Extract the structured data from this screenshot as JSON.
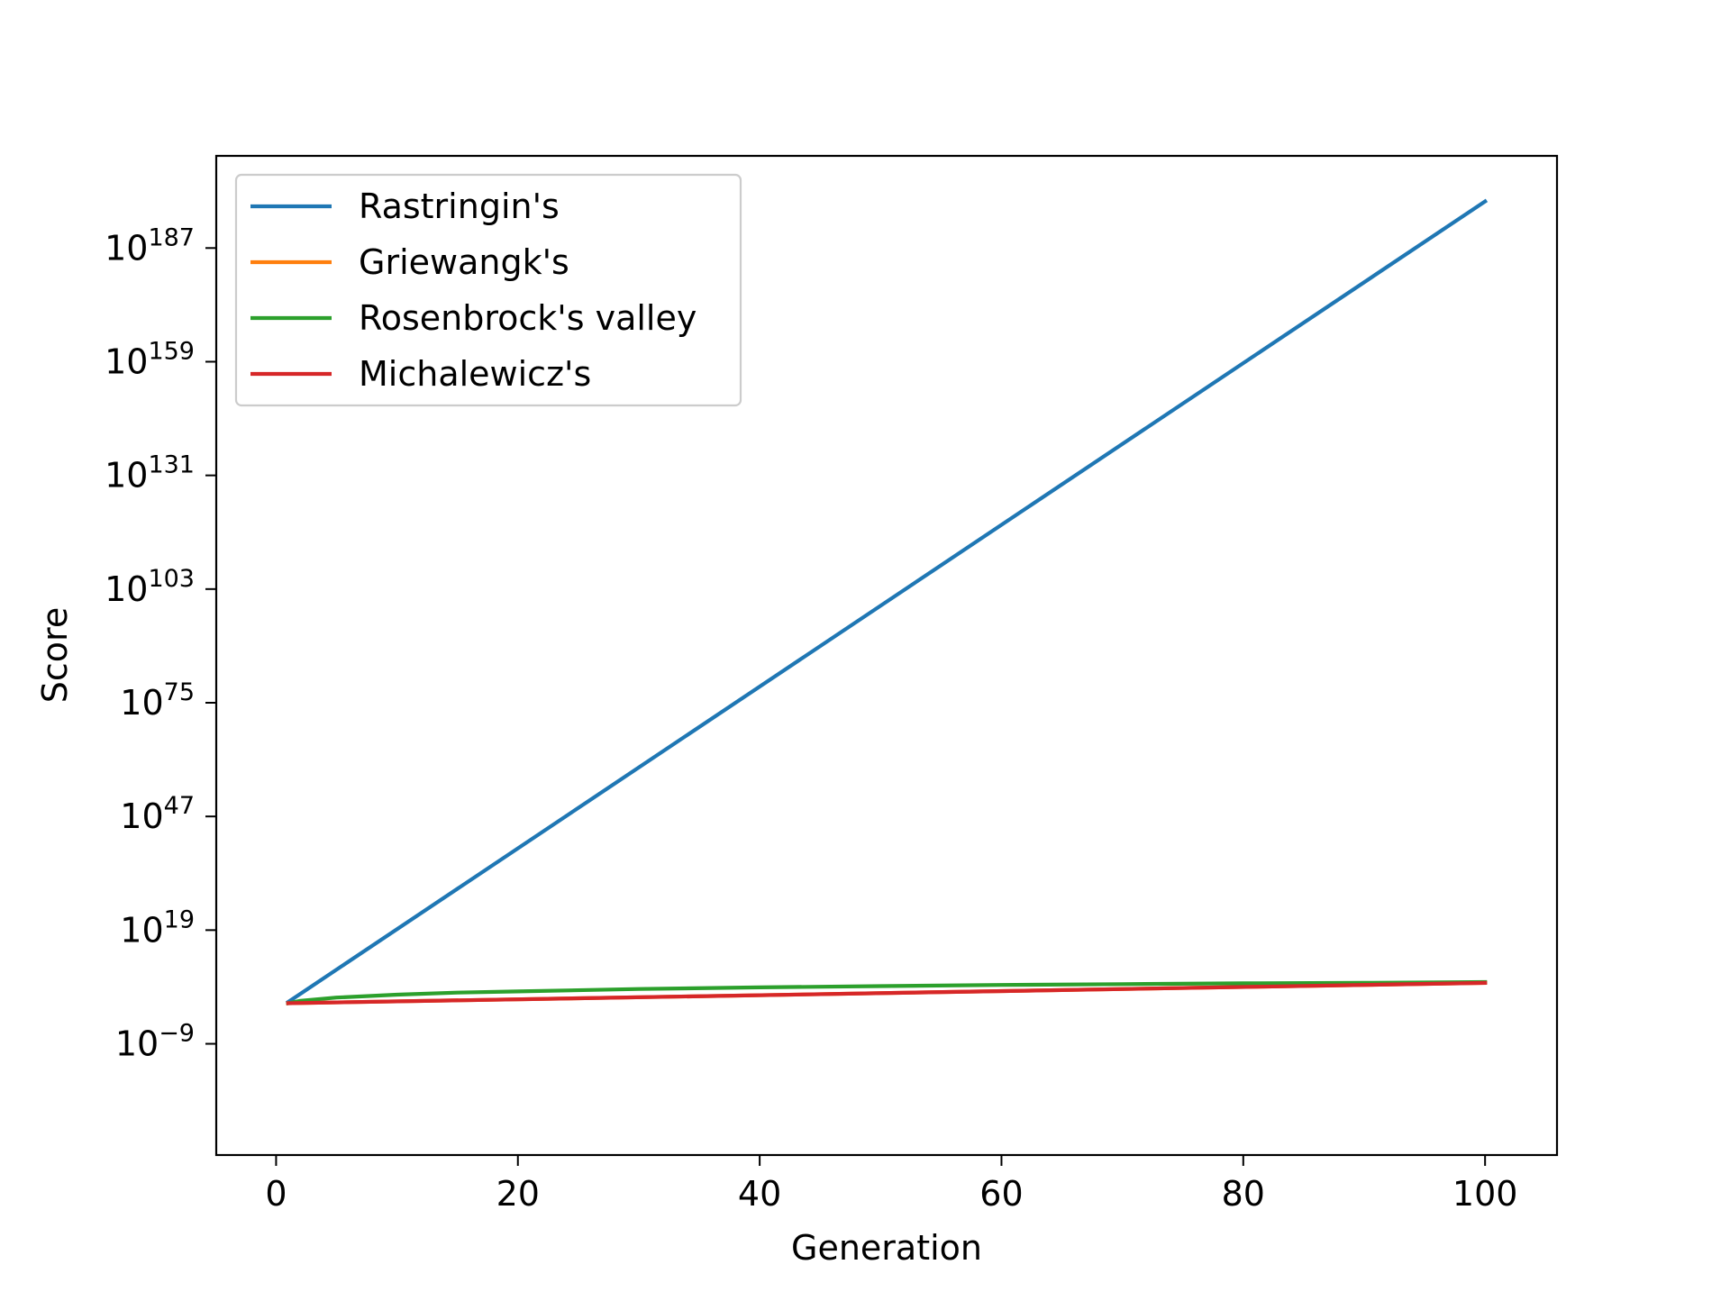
{
  "chart_data": {
    "type": "line",
    "title": "",
    "xlabel": "Generation",
    "ylabel": "Score",
    "xscale": "linear",
    "yscale": "log",
    "xlim": [
      -4.95,
      105.95
    ],
    "ylim_exponent": [
      -36.4,
      209.7
    ],
    "x_ticks": [
      {
        "value": 0,
        "label": "0"
      },
      {
        "value": 20,
        "label": "20"
      },
      {
        "value": 40,
        "label": "40"
      },
      {
        "value": 60,
        "label": "60"
      },
      {
        "value": 80,
        "label": "80"
      },
      {
        "value": 100,
        "label": "100"
      }
    ],
    "y_ticks": [
      {
        "exponent": -9,
        "base": "10",
        "power": "−9"
      },
      {
        "exponent": 19,
        "base": "10",
        "power": "19"
      },
      {
        "exponent": 47,
        "base": "10",
        "power": "47"
      },
      {
        "exponent": 75,
        "base": "10",
        "power": "75"
      },
      {
        "exponent": 103,
        "base": "10",
        "power": "103"
      },
      {
        "exponent": 131,
        "base": "10",
        "power": "131"
      },
      {
        "exponent": 159,
        "base": "10",
        "power": "159"
      },
      {
        "exponent": 187,
        "base": "10",
        "power": "187"
      }
    ],
    "grid": false,
    "legend_position": "top-left",
    "series": [
      {
        "name": "Rastringin's",
        "color": "#1f77b4",
        "x": [
          1,
          2,
          100
        ],
        "y_exponent": [
          1.3,
          3.3,
          198.5
        ]
      },
      {
        "name": "Griewangk's",
        "color": "#ff7f0e",
        "x": [
          1,
          100
        ],
        "y_exponent": [
          1.0,
          6.0
        ]
      },
      {
        "name": "Rosenbrock's valley",
        "color": "#2ca02c",
        "x": [
          1,
          2,
          5,
          10,
          15,
          20,
          30,
          40,
          50,
          60,
          70,
          80,
          90,
          100
        ],
        "y_exponent": [
          1.0,
          1.6,
          2.4,
          3.1,
          3.6,
          3.9,
          4.5,
          4.9,
          5.2,
          5.5,
          5.7,
          5.9,
          6.0,
          6.2
        ]
      },
      {
        "name": "Michalewicz's",
        "color": "#d62728",
        "x": [
          1,
          100
        ],
        "y_exponent": [
          1.0,
          6.0
        ]
      }
    ]
  }
}
